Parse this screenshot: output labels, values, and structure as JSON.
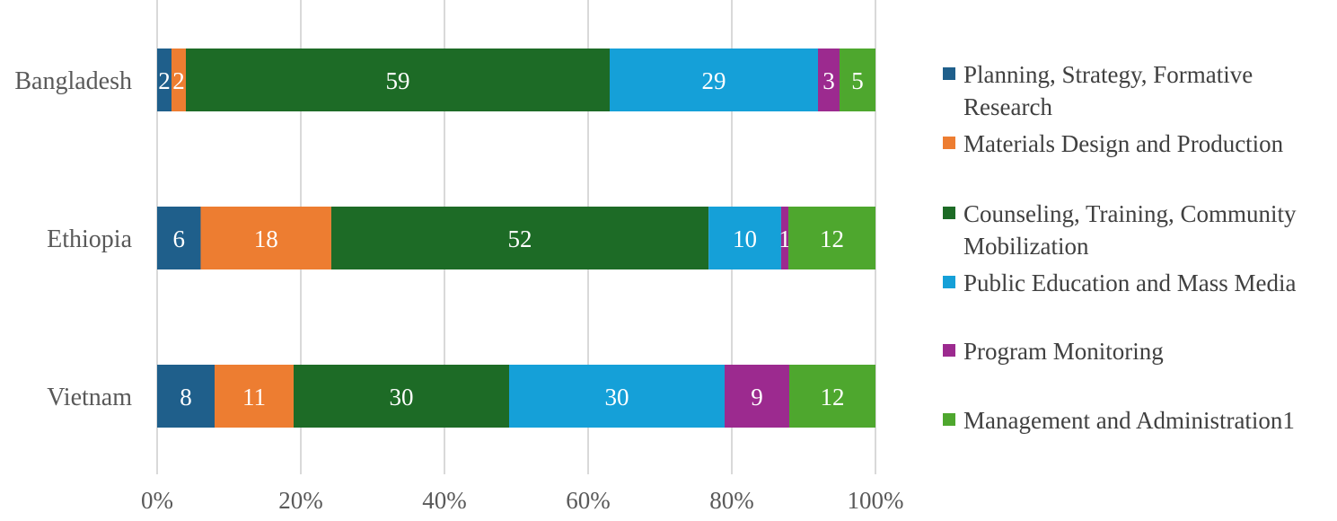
{
  "chart_data": {
    "type": "bar",
    "orientation": "horizontal",
    "stacked": "percent",
    "categories": [
      "Bangladesh",
      "Ethiopia",
      "Vietnam"
    ],
    "series": [
      {
        "name": "Planning, Strategy, Formative Research",
        "color": "#1f5f8b",
        "values": [
          2,
          6,
          8
        ],
        "labels": [
          "2",
          "6",
          "8"
        ]
      },
      {
        "name": "Materials Design and Production",
        "color": "#ed7d31",
        "values": [
          2,
          18,
          11
        ],
        "labels": [
          "2",
          "18",
          "11"
        ]
      },
      {
        "name": "Counseling, Training, Community Mobilization",
        "color": "#1d6b26",
        "values": [
          59,
          52,
          30
        ],
        "labels": [
          "59",
          "52",
          "30"
        ]
      },
      {
        "name": "Public Education and Mass Media",
        "color": "#15a0d8",
        "values": [
          29,
          10,
          30
        ],
        "labels": [
          "29",
          "10",
          "30"
        ]
      },
      {
        "name": "Program Monitoring",
        "color": "#9c2a8f",
        "values": [
          3,
          1,
          9
        ],
        "labels": [
          "3",
          "1",
          "9"
        ]
      },
      {
        "name": "Management and Administration1",
        "color": "#4ea72e",
        "values": [
          5,
          12,
          12
        ],
        "labels": [
          "5",
          "12",
          "12"
        ]
      }
    ],
    "x_ticks": [
      "0%",
      "20%",
      "40%",
      "60%",
      "80%",
      "100%"
    ],
    "xlim": [
      0,
      100
    ],
    "grid": "vertical",
    "legend_position": "right",
    "title": "",
    "xlabel": "",
    "ylabel": ""
  }
}
